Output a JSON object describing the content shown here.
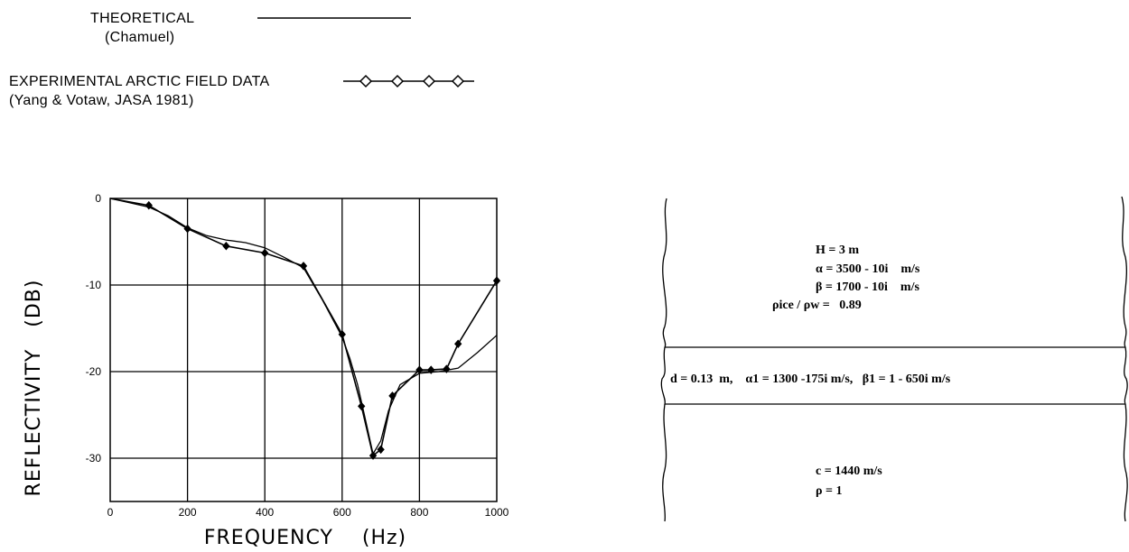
{
  "legend": {
    "theoretical_label": "THEORETICAL",
    "theoretical_source": "(Chamuel)",
    "experimental_label": "EXPERIMENTAL ARCTIC FIELD DATA",
    "experimental_source": "(Yang & Votaw, JASA 1981)"
  },
  "chart_data": {
    "type": "line",
    "xlabel": "FREQUENCY    (Hz)",
    "ylabel": "REFLECTIVITY   (DB)",
    "xlim": [
      0,
      1000
    ],
    "ylim": [
      -35,
      0
    ],
    "grid": true,
    "legend_position": "top-left",
    "x_ticks": [
      "0",
      "200",
      "400",
      "600",
      "800",
      "1000"
    ],
    "y_ticks": [
      "0",
      "-10",
      "-20",
      "-30"
    ],
    "series": [
      {
        "name": "THEORETICAL",
        "marker": "none",
        "x": [
          0,
          50,
          100,
          150,
          200,
          250,
          300,
          350,
          400,
          450,
          500,
          550,
          600,
          620,
          640,
          660,
          680,
          700,
          720,
          750,
          800,
          850,
          900,
          950,
          1000
        ],
        "y": [
          0,
          -0.5,
          -1.0,
          -2.0,
          -3.4,
          -4.3,
          -4.8,
          -5.1,
          -5.7,
          -6.8,
          -8.0,
          -11.8,
          -16.0,
          -18.5,
          -21.5,
          -25.5,
          -29.5,
          -28.0,
          -24.5,
          -21.5,
          -20.2,
          -20.0,
          -19.6,
          -17.8,
          -15.8
        ]
      },
      {
        "name": "EXPERIMENTAL ARCTIC FIELD DATA",
        "marker": "diamond",
        "x": [
          0,
          100,
          200,
          300,
          400,
          500,
          600,
          650,
          680,
          700,
          730,
          800,
          830,
          870,
          900,
          1000
        ],
        "y": [
          0,
          -0.8,
          -3.5,
          -5.5,
          -6.3,
          -7.8,
          -15.7,
          -24.0,
          -29.7,
          -29.0,
          -22.8,
          -19.8,
          -19.8,
          -19.7,
          -16.8,
          -9.5
        ]
      }
    ]
  },
  "model": {
    "ice_H": "H = 3 m",
    "ice_alpha": "α = 3500 - 10i    m/s",
    "ice_beta": "β = 1700 - 10i    m/s",
    "ice_rho_ratio": "ρice / ρw =   0.89",
    "layer_text": "d = 0.13  m,    α1 = 1300 -175i m/s,   β1 = 1 - 650i m/s",
    "water_c": "c = 1440 m/s",
    "water_rho": "ρ = 1"
  }
}
